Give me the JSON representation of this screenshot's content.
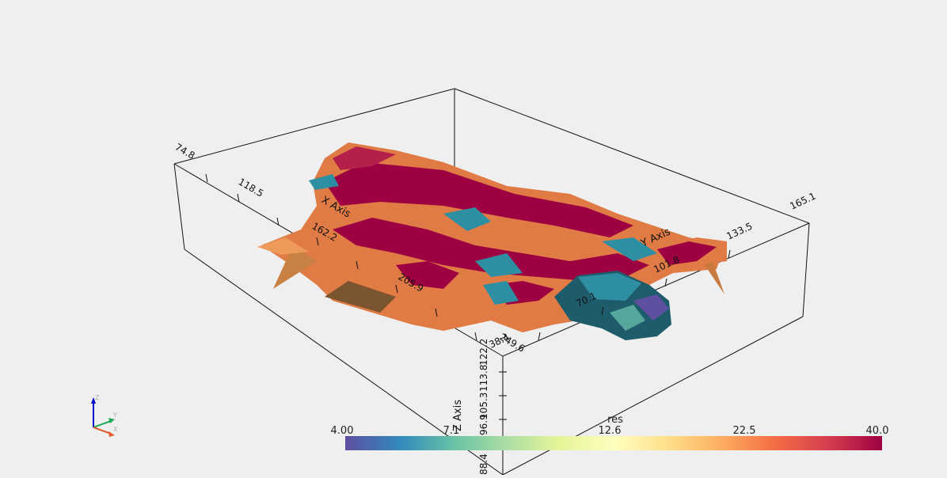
{
  "scalar_bar": {
    "title": "res",
    "ticks": [
      "4.00",
      "7.1",
      "12.6",
      "22.5",
      "40.0"
    ],
    "colors": [
      "#5e4fa2",
      "#3288bd",
      "#66c2a5",
      "#abdda4",
      "#e6f598",
      "#ffffbf",
      "#fee08b",
      "#fdae61",
      "#f46d43",
      "#d53e4f",
      "#9e0142"
    ]
  },
  "axes": {
    "x": {
      "title": "X Axis",
      "ticks": [
        "74.8",
        "118.5",
        "162.2",
        "205.9",
        "249.6"
      ]
    },
    "y": {
      "title": "Y Axis",
      "ticks": [
        "38.4",
        "70.1",
        "101.8",
        "133.5",
        "165.1"
      ]
    },
    "z": {
      "title": "Z Axis",
      "ticks": [
        "88.4",
        "96.9",
        "105.3",
        "113.8",
        "122.2"
      ]
    }
  },
  "orientation_widget": {
    "x": "X",
    "y": "Y",
    "z": "Z"
  },
  "mesh_colors": {
    "high": "#9e0142",
    "orange": "#e07b45",
    "light_orange": "#ed9a5a",
    "teal": "#2e8fa3",
    "dark_teal": "#1f5c6b",
    "purple": "#5e4fa2",
    "shadow": "#7a5530"
  }
}
